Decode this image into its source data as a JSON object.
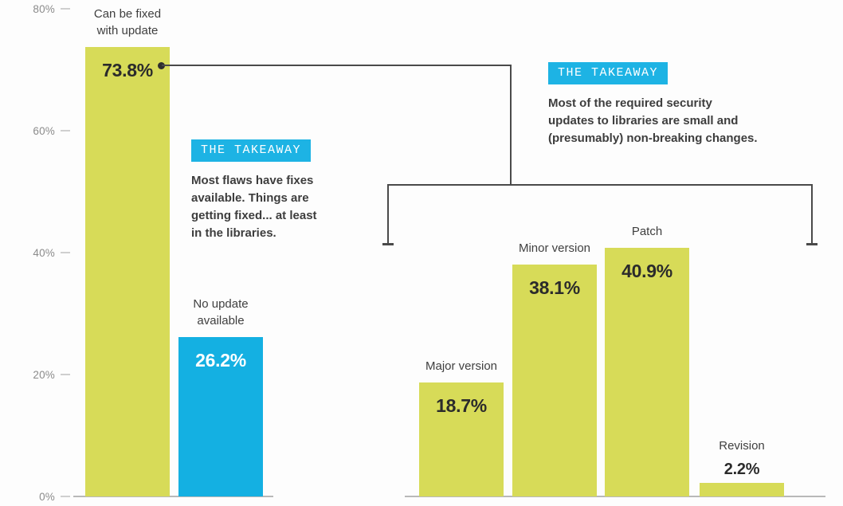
{
  "colors": {
    "bar_lime": "#d7db58",
    "bar_cyan": "#14b0e2",
    "badge_cyan": "#1db3e4",
    "text_dark": "#3d3d3d",
    "value_dark": "#2b2b2b",
    "value_light": "#ffffff",
    "axis_gray": "#8b8b8b",
    "connector_gray": "#4a4a4a",
    "baseline_gray": "#b9b9b9"
  },
  "chart_data": {
    "type": "bar",
    "unit": "%",
    "ylim": [
      0,
      80
    ],
    "grid": false,
    "legend": "none",
    "yticks": [
      "80%",
      "60%",
      "40%",
      "20%",
      "0%"
    ],
    "left_chart": {
      "categories": [
        "Can be fixed with update",
        "No update available"
      ],
      "values": [
        73.8,
        26.2
      ],
      "bars": [
        {
          "category": "Can be fixed\nwith update",
          "value": 73.8,
          "value_label": "73.8%",
          "color": "#d7db58",
          "value_color": "#2b2b2b"
        },
        {
          "category": "No update\navailable",
          "value": 26.2,
          "value_label": "26.2%",
          "color": "#14b0e2",
          "value_color": "#ffffff"
        }
      ]
    },
    "right_chart": {
      "categories": [
        "Major version",
        "Minor version",
        "Patch",
        "Revision"
      ],
      "values": [
        18.7,
        38.1,
        40.9,
        2.2
      ],
      "bars": [
        {
          "category": "Major version",
          "value": 18.7,
          "value_label": "18.7%",
          "color": "#d7db58",
          "value_color": "#2b2b2b"
        },
        {
          "category": "Minor version",
          "value": 38.1,
          "value_label": "38.1%",
          "color": "#d7db58",
          "value_color": "#2b2b2b"
        },
        {
          "category": "Patch",
          "value": 40.9,
          "value_label": "40.9%",
          "color": "#d7db58",
          "value_color": "#2b2b2b"
        },
        {
          "category": "Revision",
          "value": 2.2,
          "value_label": "2.2%",
          "color": "#d7db58",
          "value_color": "#2b2b2b"
        }
      ]
    }
  },
  "takeaways": [
    {
      "badge": "THE TAKEAWAY",
      "text": "Most flaws have fixes\navailable. Things are\ngetting fixed... at least\nin the libraries."
    },
    {
      "badge": "THE TAKEAWAY",
      "text": "Most of the required security\nupdates to libraries are small and\n(presumably) non-breaking changes."
    }
  ]
}
